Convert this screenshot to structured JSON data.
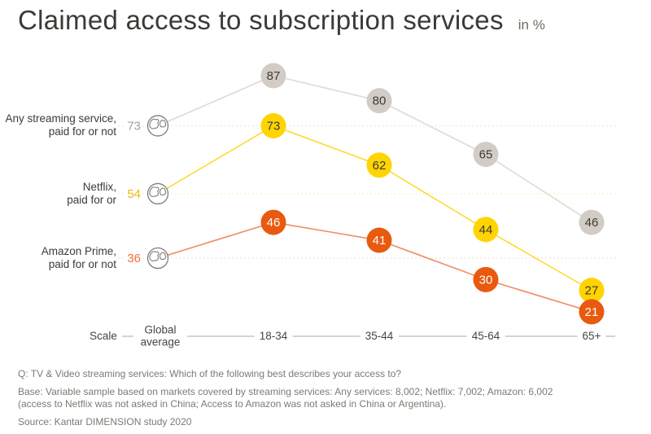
{
  "header": {
    "title": "Claimed access to subscription services",
    "unit_label": "in %"
  },
  "chart_data": {
    "type": "line",
    "title": "Claimed access to subscription services",
    "unit": "%",
    "x_axis": {
      "prefix_label": "Scale",
      "categories": [
        "Global average",
        "18-34",
        "35-44",
        "45-64",
        "65+"
      ]
    },
    "series": [
      {
        "name": "Any streaming service, paid for or not",
        "label_lines": [
          "Any streaming service,",
          "paid for or not"
        ],
        "global_average": 73,
        "values": [
          87,
          80,
          65,
          46
        ],
        "colors": {
          "fill": "#d2ccc5",
          "line": "#e0dcd7",
          "gridline": "#e9e6e2",
          "value_text": "#3b3b3a",
          "avg_text": "#a7a098"
        }
      },
      {
        "name": "Netflix, paid for or",
        "label_lines": [
          "Netflix,",
          "paid for or"
        ],
        "global_average": 54,
        "values": [
          73,
          62,
          44,
          27
        ],
        "colors": {
          "fill": "#ffd400",
          "line": "#fedc3b",
          "gridline": "#f6e9b8",
          "value_text": "#3b3b3a",
          "avg_text": "#efb70e"
        }
      },
      {
        "name": "Amazon Prime, paid for or not",
        "label_lines": [
          "Amazon Prime,",
          "paid for or not"
        ],
        "global_average": 36,
        "values": [
          46,
          41,
          30,
          21
        ],
        "colors": {
          "fill": "#e85a0f",
          "line": "#f0916a",
          "gridline": "#f7dbc9",
          "value_text": "#ffffff",
          "avg_text": "#ee7135"
        }
      }
    ],
    "globe_icon": "globe-icon",
    "axis_color": "#c9c5c0"
  },
  "footnotes": {
    "question": "Q: TV & Video streaming services: Which of the following best describes your access to?",
    "base_line1": "Base: Variable sample based on markets covered by streaming services: Any services: 8,002; Netflix: 7,002; Amazon: 6,002",
    "base_line2": "(access to Netflix was not asked in China; Access to Amazon was not asked in China or Argentina).",
    "source": "Source: Kantar DIMENSION study 2020"
  }
}
